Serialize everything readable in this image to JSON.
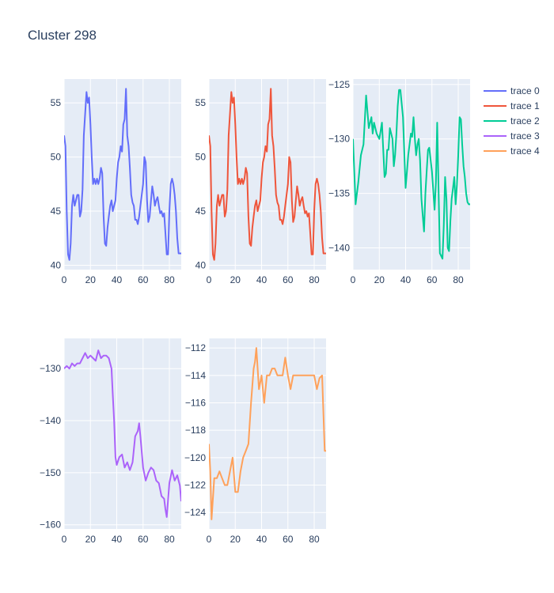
{
  "chart_data": {
    "type": "line",
    "title": "Cluster 298",
    "legend_position": "top-right",
    "grid": true,
    "colors": {
      "plot_bg": "#e5ecf6",
      "grid": "#ffffff",
      "text": "#2a3f5f"
    },
    "series": [
      {
        "name": "trace 0",
        "color": "#636efa",
        "xlim": [
          0,
          89
        ],
        "ylim": [
          39.6,
          57.2
        ],
        "xticks": [
          0,
          20,
          40,
          60,
          80
        ],
        "yticks": [
          40,
          45,
          50,
          55
        ],
        "x": [
          0,
          1,
          2,
          3,
          4,
          5,
          6,
          7,
          8,
          9,
          10,
          11,
          12,
          13,
          14,
          15,
          16,
          17,
          18,
          19,
          20,
          21,
          22,
          23,
          24,
          25,
          26,
          27,
          28,
          29,
          30,
          31,
          32,
          33,
          34,
          35,
          36,
          37,
          38,
          39,
          40,
          41,
          42,
          43,
          44,
          45,
          46,
          47,
          48,
          49,
          50,
          51,
          52,
          53,
          54,
          55,
          56,
          57,
          58,
          59,
          60,
          61,
          62,
          63,
          64,
          65,
          66,
          67,
          68,
          69,
          70,
          71,
          72,
          73,
          74,
          75,
          76,
          77,
          78,
          79,
          80,
          81,
          82,
          83,
          84,
          85,
          86,
          87,
          88,
          89
        ],
        "y": [
          52,
          51,
          45,
          41,
          40.5,
          42,
          45.5,
          46.5,
          45.5,
          46,
          46.5,
          46.5,
          44.5,
          45,
          47,
          52,
          54,
          56,
          55,
          55.5,
          53,
          50,
          47.5,
          48,
          47.5,
          48,
          47.5,
          48,
          49,
          48.5,
          44.5,
          42,
          41.8,
          43.5,
          44.5,
          45.5,
          46,
          45,
          45.5,
          46,
          48,
          49.5,
          50,
          51,
          50.5,
          53,
          53.5,
          56.3,
          52,
          51,
          49,
          46.5,
          45.8,
          45.5,
          44.2,
          44.2,
          43.8,
          44.5,
          45.5,
          46.5,
          47.5,
          50,
          49.5,
          46,
          44,
          44.5,
          46,
          47.3,
          46.5,
          45.5,
          46,
          46.3,
          45.5,
          44.8,
          45,
          44.5,
          44.8,
          43,
          41,
          41,
          45,
          47.5,
          48,
          47.5,
          46.5,
          45,
          42.5,
          41.1,
          41.1,
          41.1
        ]
      },
      {
        "name": "trace 1",
        "color": "#ef553b",
        "xlim": [
          0,
          89
        ],
        "ylim": [
          39.6,
          57.2
        ],
        "xticks": [
          0,
          20,
          40,
          60,
          80
        ],
        "yticks": [
          40,
          45,
          50,
          55
        ],
        "x": [
          0,
          1,
          2,
          3,
          4,
          5,
          6,
          7,
          8,
          9,
          10,
          11,
          12,
          13,
          14,
          15,
          16,
          17,
          18,
          19,
          20,
          21,
          22,
          23,
          24,
          25,
          26,
          27,
          28,
          29,
          30,
          31,
          32,
          33,
          34,
          35,
          36,
          37,
          38,
          39,
          40,
          41,
          42,
          43,
          44,
          45,
          46,
          47,
          48,
          49,
          50,
          51,
          52,
          53,
          54,
          55,
          56,
          57,
          58,
          59,
          60,
          61,
          62,
          63,
          64,
          65,
          66,
          67,
          68,
          69,
          70,
          71,
          72,
          73,
          74,
          75,
          76,
          77,
          78,
          79,
          80,
          81,
          82,
          83,
          84,
          85,
          86,
          87,
          88,
          89
        ],
        "y": [
          52,
          51,
          45,
          41,
          40.5,
          42,
          45.5,
          46.5,
          45.5,
          46,
          46.5,
          46.5,
          44.5,
          45,
          47,
          52,
          54,
          56,
          55,
          55.5,
          53,
          50,
          47.5,
          48,
          47.5,
          48,
          47.5,
          48,
          49,
          48.5,
          44.5,
          42,
          41.8,
          43.5,
          44.5,
          45.5,
          46,
          45,
          45.5,
          46,
          48,
          49.5,
          50,
          51,
          50.5,
          53,
          53.5,
          56.3,
          52,
          51,
          49,
          46.5,
          45.8,
          45.5,
          44.2,
          44.2,
          43.8,
          44.5,
          45.5,
          46.5,
          47.5,
          50,
          49.5,
          46,
          44,
          44.5,
          46,
          47.3,
          46.5,
          45.5,
          46,
          46.3,
          45.5,
          44.8,
          45,
          44.5,
          44.8,
          43,
          41,
          41,
          45,
          47.5,
          48,
          47.5,
          46.5,
          45,
          42.5,
          41.1,
          41.1,
          41.1
        ]
      },
      {
        "name": "trace 2",
        "color": "#00cc96",
        "xlim": [
          0,
          89
        ],
        "ylim": [
          -142,
          -124.5
        ],
        "xticks": [
          0,
          20,
          40,
          60,
          80
        ],
        "yticks": [
          -125,
          -130,
          -135,
          -140
        ],
        "x": [
          0,
          2,
          4,
          6,
          8,
          10,
          12,
          14,
          15,
          16,
          18,
          20,
          22,
          24,
          25,
          26,
          27,
          28,
          30,
          31,
          32,
          33,
          34,
          35,
          36,
          38,
          40,
          41,
          42,
          43,
          44,
          45,
          46,
          47,
          48,
          49,
          50,
          51,
          52,
          53,
          54,
          55,
          56,
          57,
          58,
          60,
          62,
          63,
          64,
          66,
          68,
          69,
          70,
          71,
          72,
          73,
          74,
          75,
          76,
          77,
          78,
          79,
          80,
          81,
          82,
          83,
          84,
          85,
          86,
          87,
          88,
          89
        ],
        "y": [
          -130,
          -136,
          -134,
          -131.5,
          -130.5,
          -126,
          -129,
          -128,
          -129.5,
          -128.5,
          -129.5,
          -130,
          -128.5,
          -133.5,
          -133.2,
          -131,
          -131,
          -129,
          -130,
          -132.5,
          -131.5,
          -129.5,
          -127,
          -125.5,
          -125.5,
          -128,
          -134.5,
          -133,
          -131.5,
          -130.5,
          -129.5,
          -129.8,
          -128,
          -130,
          -131.5,
          -130.5,
          -130,
          -132,
          -135.5,
          -137,
          -138.5,
          -135,
          -133,
          -131,
          -130.8,
          -133,
          -136.5,
          -134,
          -128.5,
          -140.5,
          -141,
          -138,
          -133.5,
          -135.5,
          -140,
          -140.3,
          -137.5,
          -135.5,
          -134.5,
          -133.5,
          -136,
          -134.2,
          -131.5,
          -128,
          -128.2,
          -130.5,
          -132.5,
          -133.5,
          -135,
          -135.8,
          -136,
          -136
        ]
      },
      {
        "name": "trace 3",
        "color": "#ab63fa",
        "xlim": [
          0,
          89
        ],
        "ylim": [
          -160.8,
          -124.2
        ],
        "xticks": [
          0,
          20,
          40,
          60,
          80
        ],
        "yticks": [
          -130,
          -140,
          -150,
          -160
        ],
        "x": [
          0,
          2,
          4,
          6,
          8,
          10,
          12,
          14,
          16,
          18,
          20,
          22,
          24,
          26,
          28,
          30,
          32,
          34,
          36,
          37,
          38,
          39,
          40,
          42,
          44,
          46,
          48,
          50,
          52,
          54,
          56,
          57,
          58,
          60,
          62,
          64,
          66,
          68,
          70,
          72,
          74,
          76,
          77,
          78,
          80,
          82,
          84,
          86,
          88,
          89
        ],
        "y": [
          -130,
          -129.5,
          -130,
          -129,
          -129.5,
          -129,
          -129,
          -128,
          -127,
          -128,
          -127.5,
          -128,
          -128.5,
          -126.5,
          -128,
          -127.5,
          -127.5,
          -128,
          -130,
          -135,
          -140,
          -147,
          -148.5,
          -147,
          -146.5,
          -149,
          -148,
          -149.5,
          -148,
          -143,
          -142,
          -140.5,
          -143,
          -149,
          -151.5,
          -150,
          -149,
          -149.5,
          -151.5,
          -152,
          -154.5,
          -155,
          -157,
          -158.5,
          -152,
          -149.5,
          -151.5,
          -150.5,
          -152.5,
          -155.5
        ]
      },
      {
        "name": "trace 4",
        "color": "#ffa15a",
        "xlim": [
          0,
          89
        ],
        "ylim": [
          -125.2,
          -111.3
        ],
        "xticks": [
          0,
          20,
          40,
          60,
          80
        ],
        "yticks": [
          -112,
          -114,
          -116,
          -118,
          -120,
          -122,
          -124
        ],
        "x": [
          0,
          1,
          2,
          3,
          4,
          6,
          8,
          10,
          12,
          14,
          16,
          18,
          20,
          22,
          24,
          26,
          28,
          30,
          32,
          34,
          35,
          36,
          38,
          40,
          42,
          44,
          46,
          48,
          50,
          52,
          54,
          56,
          58,
          60,
          62,
          64,
          66,
          68,
          70,
          72,
          74,
          76,
          78,
          80,
          82,
          84,
          86,
          88,
          89
        ],
        "y": [
          -119,
          -121,
          -124.5,
          -123,
          -121.5,
          -121.5,
          -121,
          -121.5,
          -122,
          -122,
          -121,
          -120,
          -122.5,
          -122.5,
          -121,
          -120,
          -119.5,
          -119,
          -116,
          -113.5,
          -113,
          -112,
          -115,
          -114,
          -116,
          -114,
          -114,
          -113.5,
          -113.5,
          -114,
          -114,
          -114,
          -112.7,
          -114,
          -115,
          -114,
          -114,
          -114,
          -114,
          -114,
          -114,
          -114,
          -114,
          -114,
          -115,
          -114.2,
          -114,
          -119.5,
          -119.5
        ]
      }
    ]
  }
}
